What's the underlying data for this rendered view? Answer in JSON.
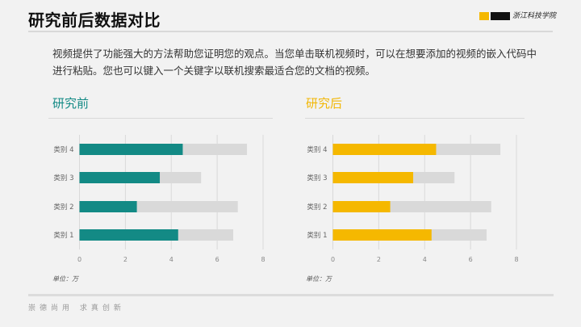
{
  "header": {
    "title": "研究前后数据对比",
    "logo_text": "浙江科技学院"
  },
  "intro": "视频提供了功能强大的方法帮助您证明您的观点。当您单击联机视频时，可以在想要添加的视频的嵌入代码中进行粘贴。您也可以键入一个关键字以联机搜索最适合您的文档的视频。",
  "footer": {
    "slogan": "崇德尚用  求真创新"
  },
  "chart_data": [
    {
      "type": "bar",
      "orientation": "horizontal",
      "title": "研究前",
      "unit_label": "单位：万",
      "categories": [
        "类别 4",
        "类别 3",
        "类别 2",
        "类别 1"
      ],
      "series": [
        {
          "values": [
            4.5,
            3.5,
            2.5,
            4.3
          ],
          "color": "#138a85"
        },
        {
          "values": [
            7.3,
            5.3,
            6.9,
            6.7
          ],
          "color": "#d9d9d9"
        }
      ],
      "xlim": [
        0,
        8
      ],
      "xticks": [
        "0",
        "2",
        "4",
        "6",
        "8"
      ],
      "grid": true
    },
    {
      "type": "bar",
      "orientation": "horizontal",
      "title": "研究后",
      "unit_label": "单位：万",
      "categories": [
        "类别 4",
        "类别 3",
        "类别 2",
        "类别 1"
      ],
      "series": [
        {
          "values": [
            4.5,
            3.5,
            2.5,
            4.3
          ],
          "color": "#f5b800"
        },
        {
          "values": [
            7.3,
            5.3,
            6.9,
            6.7
          ],
          "color": "#d9d9d9"
        }
      ],
      "xlim": [
        0,
        8
      ],
      "xticks": [
        "0",
        "2",
        "4",
        "6",
        "8"
      ],
      "grid": true
    }
  ]
}
